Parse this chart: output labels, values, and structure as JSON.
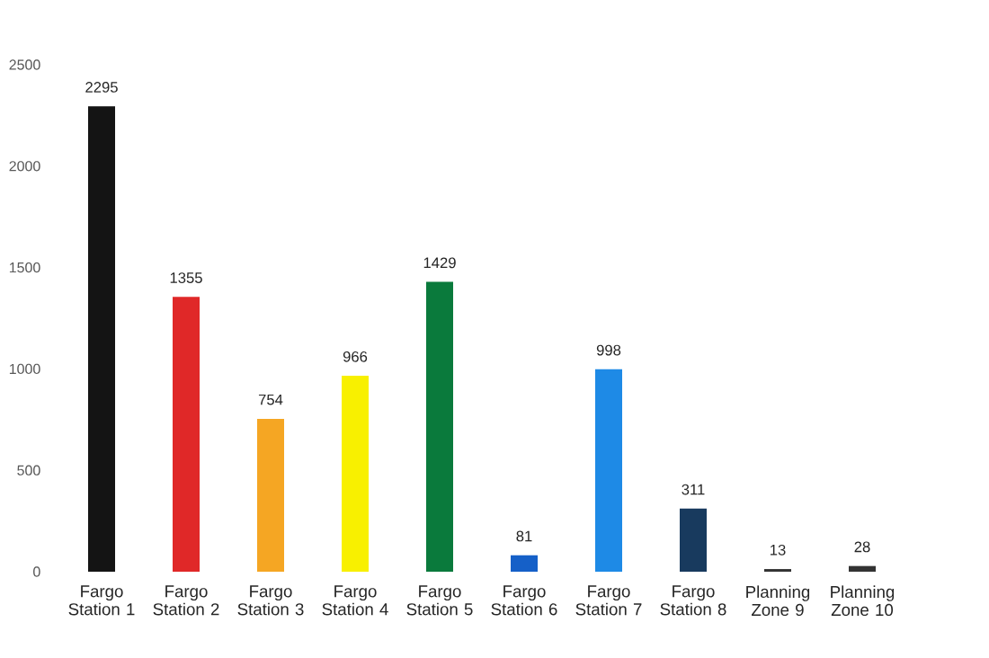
{
  "chart_data": {
    "type": "bar",
    "categories": [
      "Fargo Station 1",
      "Fargo Station 2",
      "Fargo Station 3",
      "Fargo Station 4",
      "Fargo Station 5",
      "Fargo Station 6",
      "Fargo Station 7",
      "Fargo Station 8",
      "Planning Zone 9",
      "Planning Zone 10"
    ],
    "values": [
      2295,
      1355,
      754,
      966,
      1429,
      81,
      998,
      311,
      13,
      28
    ],
    "colors": [
      "#141414",
      "#e02828",
      "#f5a623",
      "#f8f000",
      "#0a7a3c",
      "#1560c8",
      "#1e8ae6",
      "#183a5e",
      "#333333",
      "#333333"
    ],
    "ylim": [
      0,
      2500
    ],
    "yticks": [
      0,
      500,
      1000,
      1500,
      2000,
      2500
    ],
    "data_labels": true,
    "grid": false
  }
}
